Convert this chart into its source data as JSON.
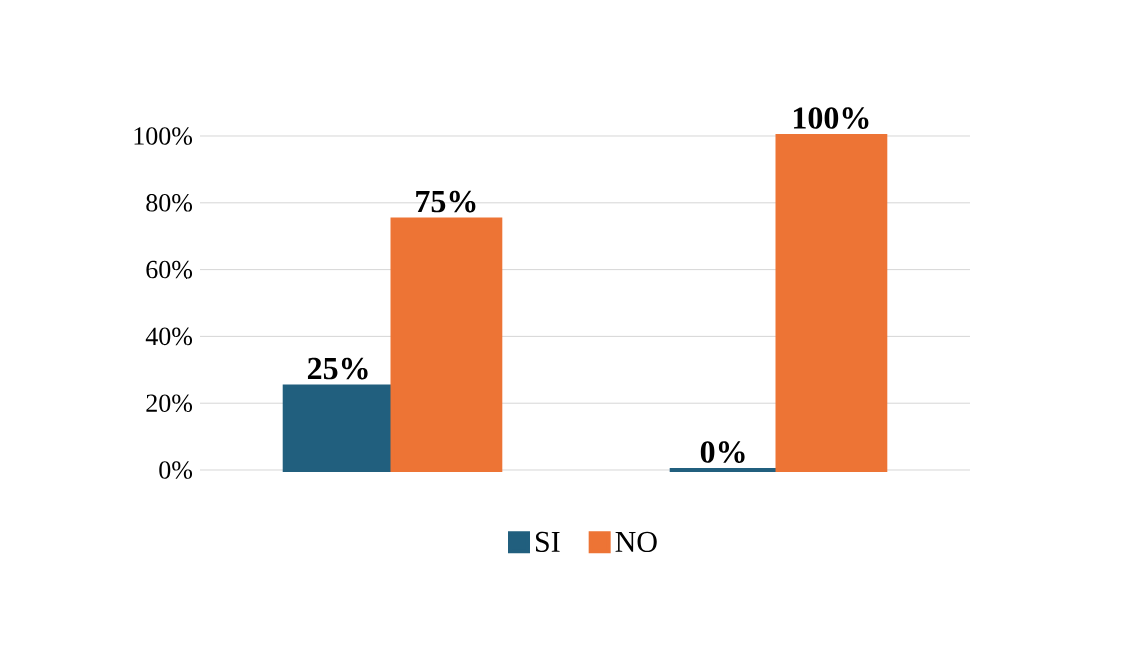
{
  "chart_data": {
    "type": "bar",
    "categories": [
      null,
      null
    ],
    "series": [
      {
        "name": "SI",
        "color": "#215f7e",
        "values": [
          25,
          0
        ],
        "value_labels": [
          "25%",
          "0%"
        ]
      },
      {
        "name": "NO",
        "color": "#ed7435",
        "values": [
          75,
          100
        ],
        "value_labels": [
          "75%",
          "100%"
        ]
      }
    ],
    "ylim": [
      0,
      100
    ],
    "yticks": [
      {
        "value": 0,
        "label": "0%"
      },
      {
        "value": 20,
        "label": "20%"
      },
      {
        "value": 40,
        "label": "40%"
      },
      {
        "value": 60,
        "label": "60%"
      },
      {
        "value": 80,
        "label": "80%"
      },
      {
        "value": 100,
        "label": "100%"
      }
    ],
    "grid": "y",
    "legend": "bottom"
  }
}
